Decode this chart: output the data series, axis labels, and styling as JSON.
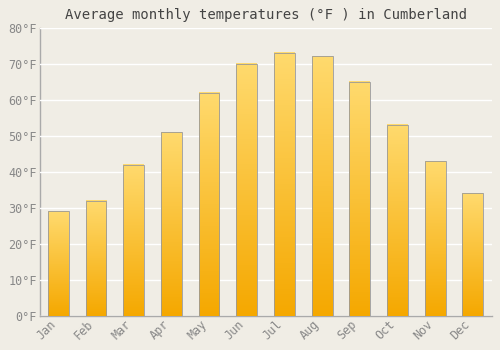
{
  "title": "Average monthly temperatures (°F ) in Cumberland",
  "months": [
    "Jan",
    "Feb",
    "Mar",
    "Apr",
    "May",
    "Jun",
    "Jul",
    "Aug",
    "Sep",
    "Oct",
    "Nov",
    "Dec"
  ],
  "values": [
    29,
    32,
    42,
    51,
    62,
    70,
    73,
    72,
    65,
    53,
    43,
    34
  ],
  "bar_color_bottom": "#F5A800",
  "bar_color_top": "#FFDA6E",
  "bar_edge_color": "#999999",
  "background_color": "#F0EDE5",
  "plot_bg_color": "#F0EDE5",
  "grid_color": "#FFFFFF",
  "ylim": [
    0,
    80
  ],
  "yticks": [
    0,
    10,
    20,
    30,
    40,
    50,
    60,
    70,
    80
  ],
  "ytick_labels": [
    "0°F",
    "10°F",
    "20°F",
    "30°F",
    "40°F",
    "50°F",
    "60°F",
    "70°F",
    "80°F"
  ],
  "title_fontsize": 10,
  "tick_fontsize": 8.5,
  "title_color": "#444444",
  "tick_color": "#888888",
  "font_family": "monospace",
  "bar_width": 0.55
}
